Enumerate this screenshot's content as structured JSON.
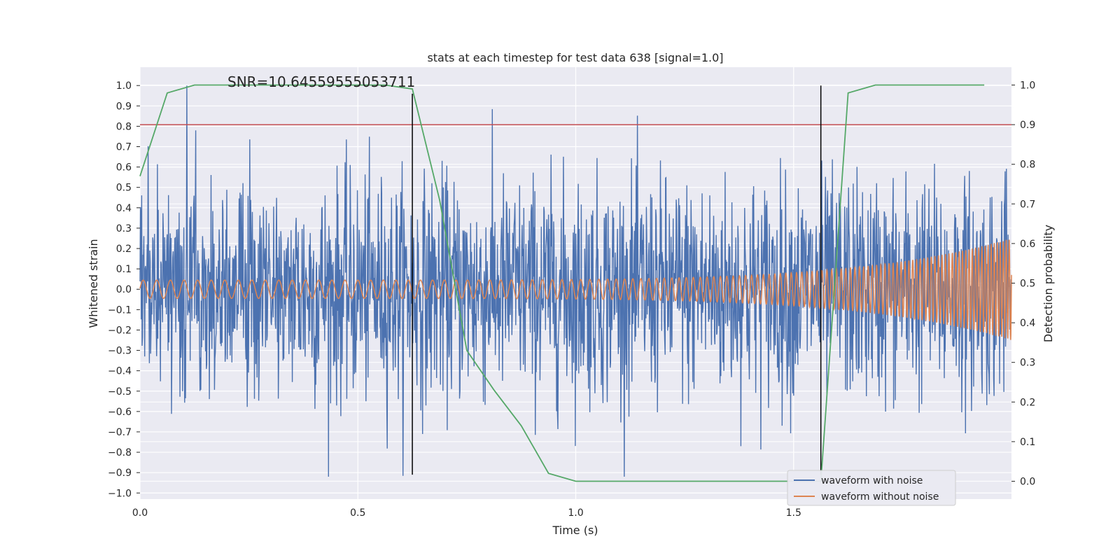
{
  "chart_data": {
    "type": "line",
    "title": "stats at each timestep for test data 638 [signal=1.0]",
    "xlabel": "Time (s)",
    "ylabel_left": "Whitened strain",
    "ylabel_right": "Detection probability",
    "annotation": "SNR=10.64559555053711",
    "xlim": [
      0.0,
      2.0
    ],
    "ylim_left": [
      -1.03,
      1.09
    ],
    "ylim_right": [
      -0.045,
      1.045
    ],
    "x_ticks": [
      0.0,
      0.5,
      1.0,
      1.5
    ],
    "x_tick_labels": [
      "0.0",
      "0.5",
      "1.0",
      "1.5"
    ],
    "y_left_ticks": [
      -1.0,
      -0.9,
      -0.8,
      -0.7,
      -0.6,
      -0.5,
      -0.4,
      -0.3,
      -0.2,
      -0.1,
      0.0,
      0.1,
      0.2,
      0.3,
      0.4,
      0.5,
      0.6,
      0.7,
      0.8,
      0.9,
      1.0
    ],
    "y_left_tick_labels": [
      "−1.0",
      "−0.9",
      "−0.8",
      "−0.7",
      "−0.6",
      "−0.5",
      "−0.4",
      "−0.3",
      "−0.2",
      "−0.1",
      "0.0",
      "0.1",
      "0.2",
      "0.3",
      "0.4",
      "0.5",
      "0.6",
      "0.7",
      "0.8",
      "0.9",
      "1.0"
    ],
    "y_right_ticks": [
      0.0,
      0.1,
      0.2,
      0.3,
      0.4,
      0.5,
      0.6,
      0.7,
      0.8,
      0.9,
      1.0
    ],
    "y_right_tick_labels": [
      "0.0",
      "0.1",
      "0.2",
      "0.3",
      "0.4",
      "0.5",
      "0.6",
      "0.7",
      "0.8",
      "0.9",
      "1.0"
    ],
    "threshold_line": {
      "axis": "right",
      "value": 0.9
    },
    "vertical_markers": [
      {
        "x": 0.625,
        "y_range": [
          -0.91,
          0.96
        ]
      },
      {
        "x": 1.5625,
        "y_range": [
          -0.91,
          1.0
        ]
      }
    ],
    "noisy_waveform": {
      "name": "waveform with noise",
      "color": "#4c72b0",
      "samples": 2048,
      "typical_range": [
        -0.5,
        0.5
      ],
      "extreme_range": [
        -0.92,
        1.0
      ]
    },
    "clean_waveform": {
      "name": "waveform without noise",
      "color": "#dd8452",
      "description_values": {
        "start_amplitude": 0.045,
        "end_amplitude": 0.25,
        "start_freq_hz": 32,
        "end_freq_hz": 150
      }
    },
    "detection_probability": {
      "name": "detection probability",
      "color": "#55a868",
      "x": [
        0.0,
        0.0625,
        0.125,
        0.1875,
        0.25,
        0.3125,
        0.375,
        0.4375,
        0.5,
        0.5625,
        0.625,
        0.6875,
        0.75,
        0.8125,
        0.875,
        0.9375,
        1.0,
        1.0625,
        1.125,
        1.1875,
        1.25,
        1.3125,
        1.375,
        1.4375,
        1.5,
        1.5625,
        1.625,
        1.6875,
        1.75,
        1.8125,
        1.875,
        1.9375
      ],
      "values": [
        0.77,
        0.98,
        1.0,
        1.0,
        1.0,
        1.0,
        1.0,
        1.0,
        1.0,
        1.0,
        0.99,
        0.71,
        0.33,
        0.23,
        0.14,
        0.02,
        0.0,
        0.0,
        0.0,
        0.0,
        0.0,
        0.0,
        0.0,
        0.0,
        0.0,
        0.0,
        0.98,
        1.0,
        1.0,
        1.0,
        1.0,
        1.0
      ]
    },
    "threshold_color": "#c44e52",
    "marker_color": "#000000",
    "background_color": "#eaeaf2",
    "legend": {
      "placement": "lower-right",
      "entries": [
        {
          "label": "waveform with noise",
          "color": "#4c72b0"
        },
        {
          "label": "waveform without noise",
          "color": "#dd8452"
        }
      ]
    }
  }
}
